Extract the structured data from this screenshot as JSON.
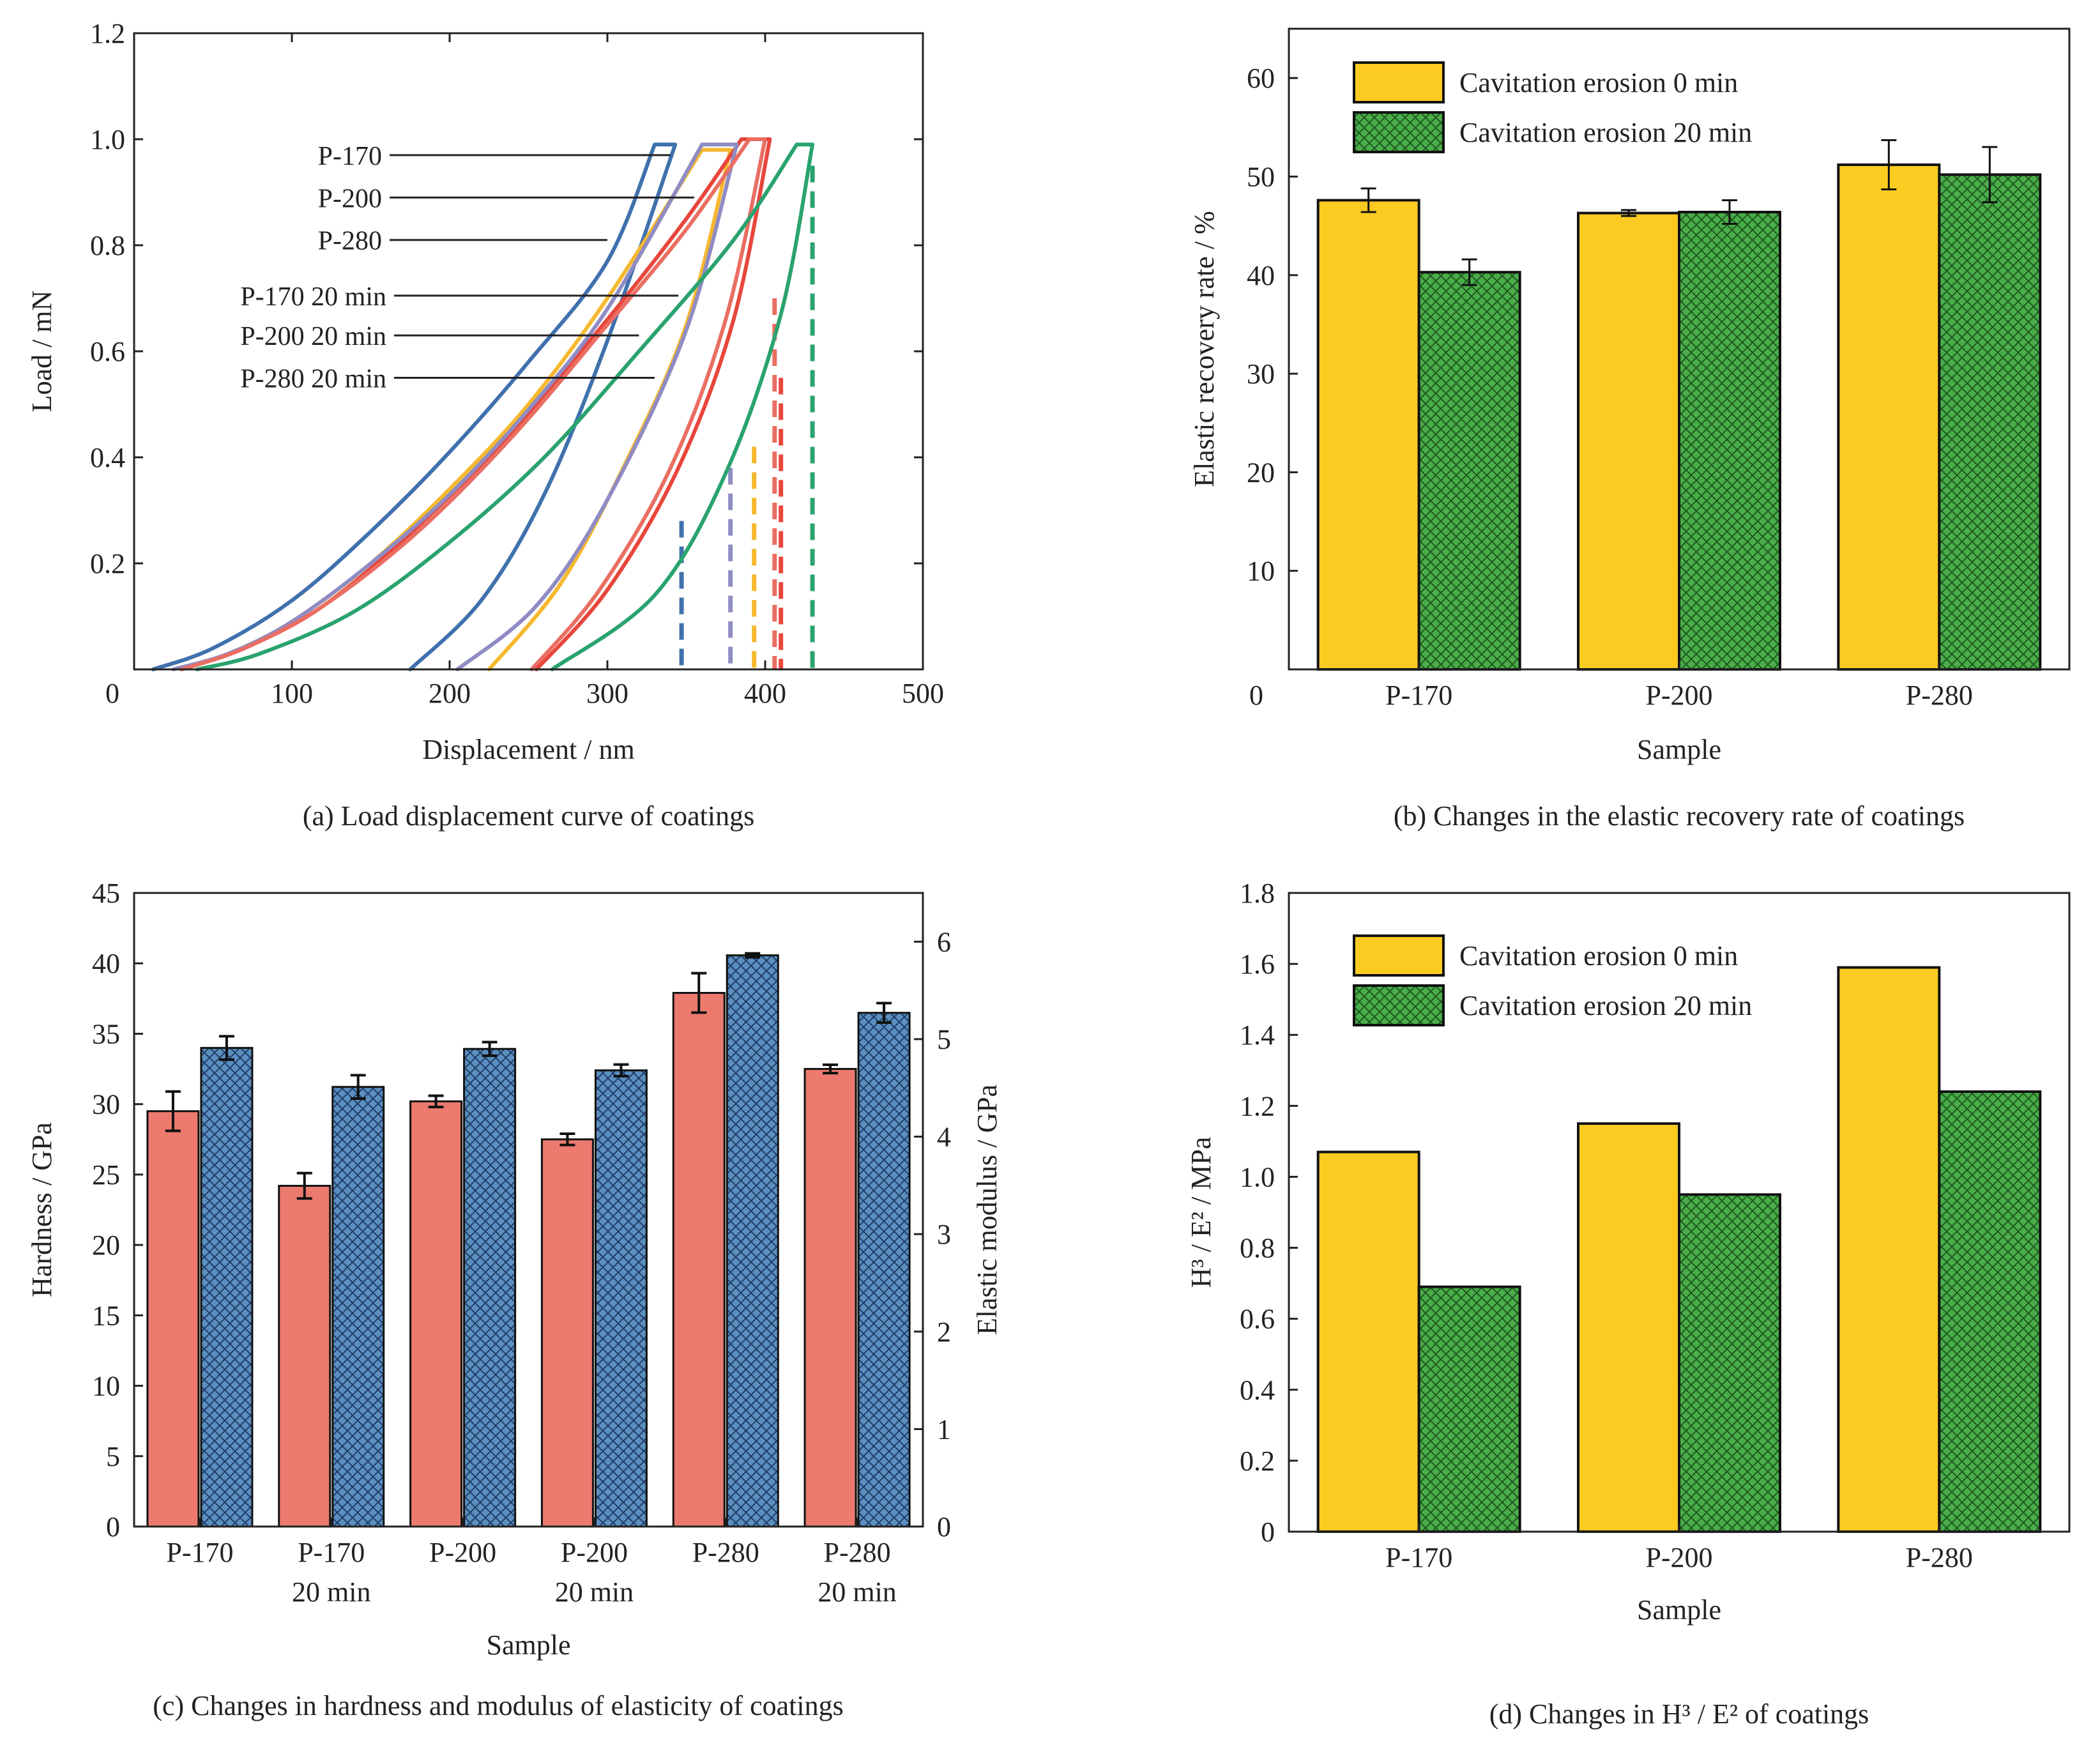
{
  "colors": {
    "yellow": "#fccb22",
    "green": "#4aad4a",
    "salmon": "#ec7a6e",
    "steel": "#5b8fc0",
    "curve_p170": "#3f71ad",
    "curve_p200": "#f5b82e",
    "curve_p280": "#e8463c",
    "curve_p170_20": "#8f8cc4",
    "curve_p200_20": "#ea6e62",
    "curve_p280_20": "#2aa36e"
  },
  "chart_data": [
    {
      "id": "a",
      "type": "line",
      "caption": "(a) Load displacement curve of coatings",
      "xlabel": "Displacement / nm",
      "ylabel": "Load / mN",
      "xlim": [
        0,
        500
      ],
      "ylim": [
        0,
        1.2
      ],
      "xticks": [
        "0",
        "100",
        "200",
        "300",
        "400",
        "500"
      ],
      "yticks": [
        "0.2",
        "0.4",
        "0.6",
        "0.8",
        "1.0",
        "1.2"
      ],
      "grid": false,
      "legend": "callouts",
      "series": [
        {
          "name": "P-170",
          "color_key": "curve_p170",
          "loading": [
            [
              12,
              0
            ],
            [
              50,
              0.04
            ],
            [
              100,
              0.13
            ],
            [
              150,
              0.26
            ],
            [
              200,
              0.41
            ],
            [
              250,
              0.58
            ],
            [
              300,
              0.77
            ],
            [
              330,
              0.99
            ]
          ],
          "hold": [
            [
              330,
              0.99
            ],
            [
              343,
              0.99
            ]
          ],
          "unloading": [
            [
              343,
              0.99
            ],
            [
              300,
              0.62
            ],
            [
              260,
              0.33
            ],
            [
              220,
              0.13
            ],
            [
              175,
              0
            ]
          ],
          "residual_x": 347
        },
        {
          "name": "P-200",
          "color_key": "curve_p200",
          "loading": [
            [
              25,
              0
            ],
            [
              60,
              0.03
            ],
            [
              100,
              0.09
            ],
            [
              150,
              0.2
            ],
            [
              200,
              0.34
            ],
            [
              250,
              0.5
            ],
            [
              300,
              0.7
            ],
            [
              360,
              0.98
            ]
          ],
          "hold": [
            [
              360,
              0.98
            ],
            [
              378,
              0.98
            ]
          ],
          "unloading": [
            [
              378,
              0.98
            ],
            [
              350,
              0.65
            ],
            [
              310,
              0.38
            ],
            [
              270,
              0.16
            ],
            [
              225,
              0
            ]
          ],
          "residual_x": 393
        },
        {
          "name": "P-280",
          "color_key": "curve_p280",
          "loading": [
            [
              30,
              0
            ],
            [
              70,
              0.04
            ],
            [
              120,
              0.12
            ],
            [
              180,
              0.27
            ],
            [
              240,
              0.45
            ],
            [
              300,
              0.66
            ],
            [
              350,
              0.85
            ],
            [
              385,
              1.0
            ]
          ],
          "hold": [
            [
              385,
              1.0
            ],
            [
              403,
              1.0
            ]
          ],
          "unloading": [
            [
              403,
              1.0
            ],
            [
              380,
              0.66
            ],
            [
              345,
              0.38
            ],
            [
              300,
              0.15
            ],
            [
              255,
              0
            ]
          ],
          "residual_x": 410
        },
        {
          "name": "P-170 20 min",
          "color_key": "curve_p170_20",
          "loading": [
            [
              25,
              0
            ],
            [
              60,
              0.03
            ],
            [
              100,
              0.09
            ],
            [
              150,
              0.2
            ],
            [
              200,
              0.33
            ],
            [
              250,
              0.49
            ],
            [
              300,
              0.68
            ],
            [
              360,
              0.99
            ]
          ],
          "hold": [
            [
              360,
              0.99
            ],
            [
              382,
              0.99
            ]
          ],
          "unloading": [
            [
              382,
              0.99
            ],
            [
              350,
              0.64
            ],
            [
              300,
              0.32
            ],
            [
              255,
              0.12
            ],
            [
              205,
              0
            ]
          ],
          "residual_x": 378
        },
        {
          "name": "P-200 20 min",
          "color_key": "curve_p200_20",
          "loading": [
            [
              30,
              0
            ],
            [
              70,
              0.04
            ],
            [
              120,
              0.12
            ],
            [
              180,
              0.26
            ],
            [
              240,
              0.44
            ],
            [
              300,
              0.65
            ],
            [
              350,
              0.83
            ],
            [
              390,
              1.0
            ]
          ],
          "hold": [
            [
              390,
              1.0
            ],
            [
              400,
              1.0
            ]
          ],
          "unloading": [
            [
              400,
              1.0
            ],
            [
              375,
              0.66
            ],
            [
              340,
              0.38
            ],
            [
              295,
              0.15
            ],
            [
              252,
              0
            ]
          ],
          "residual_x": 406
        },
        {
          "name": "P-280 20 min",
          "color_key": "curve_p280_20",
          "loading": [
            [
              40,
              0
            ],
            [
              80,
              0.03
            ],
            [
              140,
              0.11
            ],
            [
              200,
              0.24
            ],
            [
              260,
              0.4
            ],
            [
              320,
              0.6
            ],
            [
              380,
              0.81
            ],
            [
              420,
              0.99
            ]
          ],
          "hold": [
            [
              420,
              0.99
            ],
            [
              430,
              0.99
            ]
          ],
          "unloading": [
            [
              430,
              0.99
            ],
            [
              410,
              0.67
            ],
            [
              375,
              0.37
            ],
            [
              330,
              0.14
            ],
            [
              265,
              0
            ]
          ],
          "residual_x": 430
        }
      ]
    },
    {
      "id": "b",
      "type": "bar",
      "caption": "(b) Changes in the elastic recovery rate of coatings",
      "xlabel": "Sample",
      "ylabel": "Elastic recovery rate / %",
      "ylim": [
        0,
        65
      ],
      "yticks": [
        "0",
        "10",
        "20",
        "30",
        "40",
        "50",
        "60"
      ],
      "categories": [
        "P-170",
        "P-200",
        "P-280"
      ],
      "legend": "top-left",
      "series": [
        {
          "name": "Cavitation erosion 0 min",
          "color_key": "yellow",
          "pattern": "solid",
          "values": [
            47.6,
            46.3,
            51.2
          ],
          "errors": [
            1.2,
            0.3,
            2.5
          ]
        },
        {
          "name": "Cavitation erosion 20 min",
          "color_key": "green",
          "pattern": "crosshatch",
          "values": [
            40.3,
            46.4,
            50.2
          ],
          "errors": [
            1.3,
            1.2,
            2.8
          ]
        }
      ]
    },
    {
      "id": "c",
      "type": "bar",
      "caption": "(c) Changes in hardness and modulus of elasticity of coatings",
      "xlabel": "Sample",
      "ylabel": "Hardness / GPa",
      "ylabel_right": "Elastic modulus / GPa",
      "ylim": [
        0,
        45
      ],
      "ylim_right": [
        0,
        6.5
      ],
      "yticks": [
        "0",
        "5",
        "10",
        "15",
        "20",
        "25",
        "30",
        "35",
        "40",
        "45"
      ],
      "yticks_right": [
        "0",
        "1",
        "2",
        "3",
        "4",
        "5",
        "6"
      ],
      "categories": [
        [
          "P-170"
        ],
        [
          "P-170",
          "20 min"
        ],
        [
          "P-200"
        ],
        [
          "P-200",
          "20 min"
        ],
        [
          "P-280"
        ],
        [
          "P-280",
          "20 min"
        ]
      ],
      "series": [
        {
          "axis": "left",
          "color_key": "salmon",
          "pattern": "solid",
          "values": [
            29.5,
            24.2,
            30.2,
            27.5,
            37.9,
            32.5
          ],
          "errors": [
            1.4,
            0.9,
            0.4,
            0.4,
            1.4,
            0.3
          ]
        },
        {
          "axis": "right",
          "color_key": "steel",
          "pattern": "crosshatch",
          "values": [
            4.91,
            4.51,
            4.9,
            4.68,
            5.86,
            5.27
          ],
          "errors": [
            0.12,
            0.12,
            0.07,
            0.06,
            0.02,
            0.1
          ]
        }
      ]
    },
    {
      "id": "d",
      "type": "bar",
      "caption": "(d) Changes in H³ / E² of coatings",
      "xlabel": "Sample",
      "ylabel": "H³ / E² / MPa",
      "ylim": [
        0,
        1.8
      ],
      "yticks": [
        "0",
        "0.2",
        "0.4",
        "0.6",
        "0.8",
        "1.0",
        "1.2",
        "1.4",
        "1.6",
        "1.8"
      ],
      "categories": [
        "P-170",
        "P-200",
        "P-280"
      ],
      "legend": "top-left",
      "series": [
        {
          "name": "Cavitation erosion 0 min",
          "color_key": "yellow",
          "pattern": "solid",
          "values": [
            1.07,
            1.15,
            1.59
          ]
        },
        {
          "name": "Cavitation erosion 20 min",
          "color_key": "green",
          "pattern": "crosshatch",
          "values": [
            0.69,
            0.95,
            1.24
          ]
        }
      ]
    }
  ]
}
